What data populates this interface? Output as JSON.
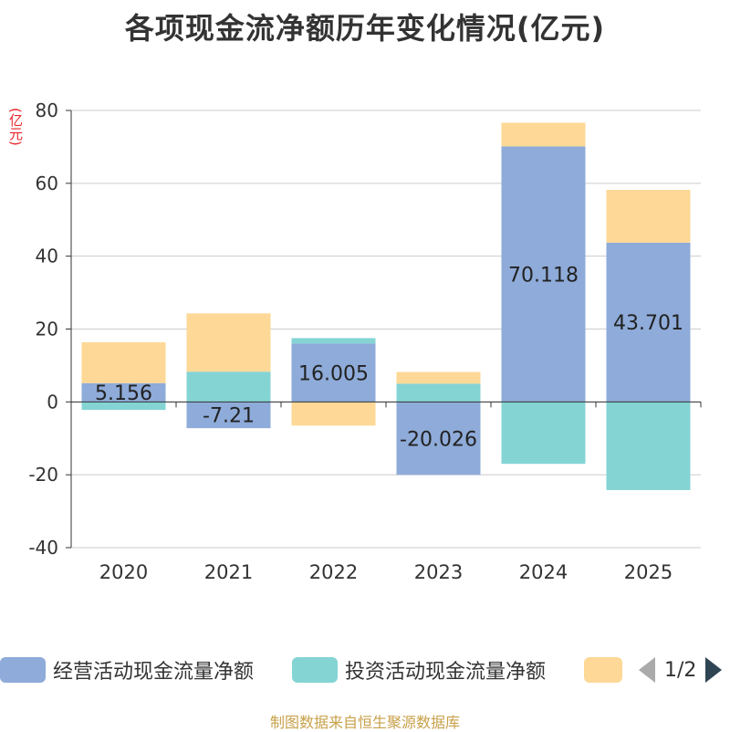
{
  "chart_data": {
    "type": "bar",
    "stacked": true,
    "title": "各项现金流净额历年变化情况(亿元)",
    "ylabel": "(亿元)",
    "ylim": [
      -40,
      80
    ],
    "yticks": [
      80,
      60,
      40,
      20,
      0,
      -20,
      -40
    ],
    "ytick_labels": [
      "80",
      "60",
      "40",
      "20",
      "0",
      "-20",
      "-40"
    ],
    "categories": [
      "2020",
      "2021",
      "2022",
      "2023",
      "2024",
      "2025"
    ],
    "series": [
      {
        "name": "经营活动现金流量净额",
        "color": "#8eabd9",
        "values": [
          5.156,
          -7.21,
          16.005,
          -20.026,
          70.118,
          43.701
        ],
        "labels": [
          "5.156",
          "-7.21",
          "16.005",
          "-20.026",
          "70.118",
          "43.701"
        ]
      },
      {
        "name": "投资活动现金流量净额",
        "color": "#84d4d4",
        "values": [
          -2.2,
          8.3,
          1.5,
          5.0,
          -17.0,
          -24.2
        ]
      },
      {
        "name": "",
        "color": "#fdd896",
        "values": [
          11.2,
          16.0,
          -6.5,
          3.2,
          6.5,
          14.5
        ]
      }
    ],
    "grid": true,
    "legend_position": "bottom"
  },
  "legend": {
    "items": [
      {
        "label": "经营活动现金流量净额",
        "color": "#8eabd9"
      },
      {
        "label": "投资活动现金流量净额",
        "color": "#84d4d4"
      },
      {
        "label": "",
        "color": "#fdd896"
      }
    ],
    "page": "1/2"
  },
  "source": "制图数据来自恒生聚源数据库"
}
